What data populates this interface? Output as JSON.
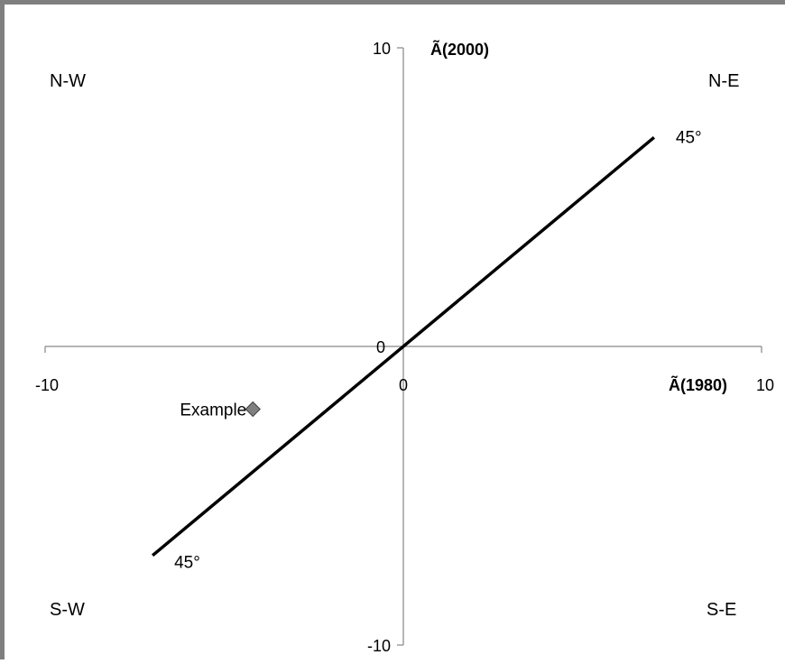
{
  "chart_data": {
    "type": "scatter",
    "xlabel": "Ã(1980)",
    "ylabel": "Ã(2000)",
    "xlim": [
      -10,
      10
    ],
    "ylim": [
      -10,
      10
    ],
    "x_ticks": [
      "-10",
      "0",
      "10"
    ],
    "y_ticks": [
      "10",
      "0",
      "-10"
    ],
    "grid": false,
    "quadrant_labels": {
      "nw": "N-W",
      "ne": "N-E",
      "sw": "S-W",
      "se": "S-E"
    },
    "reference_line": {
      "from": [
        -7,
        -7
      ],
      "to": [
        7,
        7
      ],
      "label_top": "45°",
      "label_bottom": "45°"
    },
    "series": [
      {
        "name": "Example",
        "x": [
          -4.2
        ],
        "y": [
          -2.1
        ],
        "color": "#808080",
        "marker": "diamond"
      }
    ]
  }
}
